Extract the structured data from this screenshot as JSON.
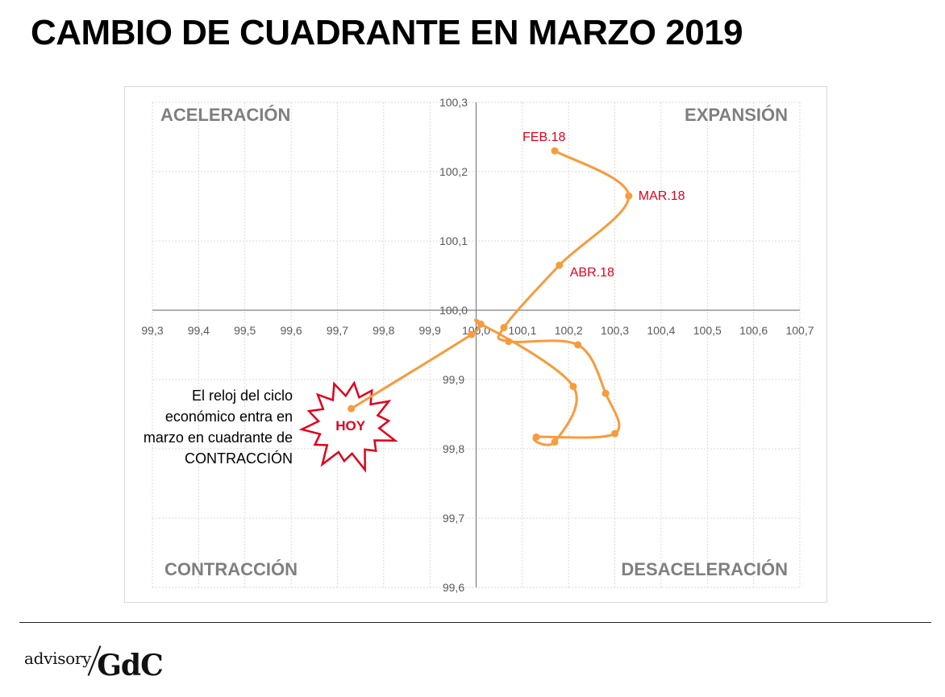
{
  "page": {
    "title": "CAMBIO DE CUADRANTE EN MARZO 2019",
    "annotation_lines": [
      "El reloj del ciclo",
      "económico entra en",
      "marzo en cuadrante de",
      "CONTRACCIÓN"
    ]
  },
  "logo": {
    "small": "advisory",
    "big": "GdC"
  },
  "chart_data": {
    "type": "scatter",
    "title": "",
    "xlabel": "",
    "ylabel": "",
    "xlim": [
      99.3,
      100.7
    ],
    "ylim": [
      99.6,
      100.3
    ],
    "x_ticks": [
      "99,3",
      "99,4",
      "99,5",
      "99,6",
      "99,7",
      "99,8",
      "99,9",
      "100,0",
      "100,1",
      "100,2",
      "100,3",
      "100,4",
      "100,5",
      "100,6",
      "100,7"
    ],
    "y_ticks": [
      "99,6",
      "99,7",
      "99,8",
      "99,9",
      "100,0",
      "100,1",
      "100,2",
      "100,3"
    ],
    "grid": true,
    "quadrant_labels": {
      "top_left": "ACELERACIÓN",
      "top_right": "EXPANSIÓN",
      "bottom_left": "CONTRACCIÓN",
      "bottom_right": "DESACELERACIÓN"
    },
    "series": [
      {
        "points": [
          {
            "x": 100.17,
            "y": 100.23,
            "label": "FEB.18"
          },
          {
            "x": 100.33,
            "y": 100.165,
            "label": "MAR.18"
          },
          {
            "x": 100.18,
            "y": 100.065,
            "label": "ABR.18"
          },
          {
            "x": 100.06,
            "y": 99.975
          },
          {
            "x": 100.07,
            "y": 99.955
          },
          {
            "x": 100.22,
            "y": 99.95
          },
          {
            "x": 100.28,
            "y": 99.88
          },
          {
            "x": 100.3,
            "y": 99.822
          },
          {
            "x": 100.13,
            "y": 99.817
          },
          {
            "x": 100.17,
            "y": 99.81
          },
          {
            "x": 100.21,
            "y": 99.89
          },
          {
            "x": 100.01,
            "y": 99.98
          },
          {
            "x": 99.99,
            "y": 99.965
          },
          {
            "x": 99.73,
            "y": 99.858,
            "label": "HOY"
          }
        ]
      }
    ],
    "colors": {
      "line": "#f79b3c",
      "label": "#e0001b",
      "quadrant_text": "#7f7f7f",
      "grid": "#d9d9d9",
      "axis": "#7f7f7f"
    }
  }
}
